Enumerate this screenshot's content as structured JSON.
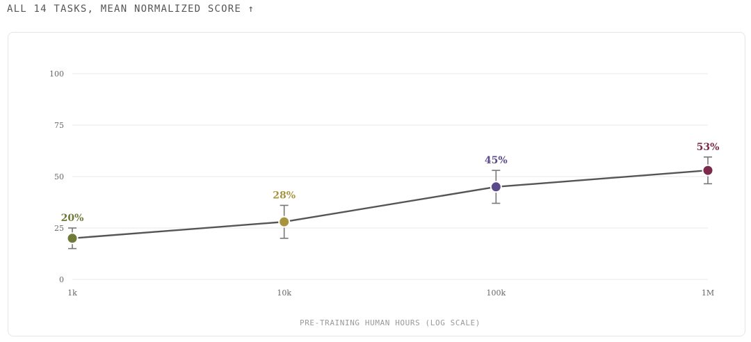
{
  "header": {
    "title": "ALL 14 TASKS, MEAN NORMALIZED SCORE ↑"
  },
  "chart_data": {
    "type": "line",
    "title": "ALL 14 TASKS, MEAN NORMALIZED SCORE ↑",
    "xlabel": "PRE-TRAINING HUMAN HOURS (LOG SCALE)",
    "ylabel": "",
    "x_scale": "log",
    "x": [
      1000,
      10000,
      100000,
      1000000
    ],
    "x_tick_labels": [
      "1k",
      "10k",
      "100k",
      "1M"
    ],
    "ylim": [
      0,
      100
    ],
    "y_ticks": [
      0,
      25,
      50,
      75,
      100
    ],
    "y_tick_labels": [
      "0",
      "25",
      "50",
      "75",
      "100"
    ],
    "grid": true,
    "values": [
      20,
      28,
      45,
      53
    ],
    "error_low": [
      15,
      20,
      37,
      46.5
    ],
    "error_high": [
      25,
      36,
      53,
      59.5
    ],
    "data_labels": [
      "20%",
      "28%",
      "45%",
      "53%"
    ],
    "point_colors": [
      "#6f7a3a",
      "#a8943e",
      "#5a4a8a",
      "#7a2a4a"
    ],
    "line_color": "#555555",
    "error_bar_color": "#777777"
  }
}
